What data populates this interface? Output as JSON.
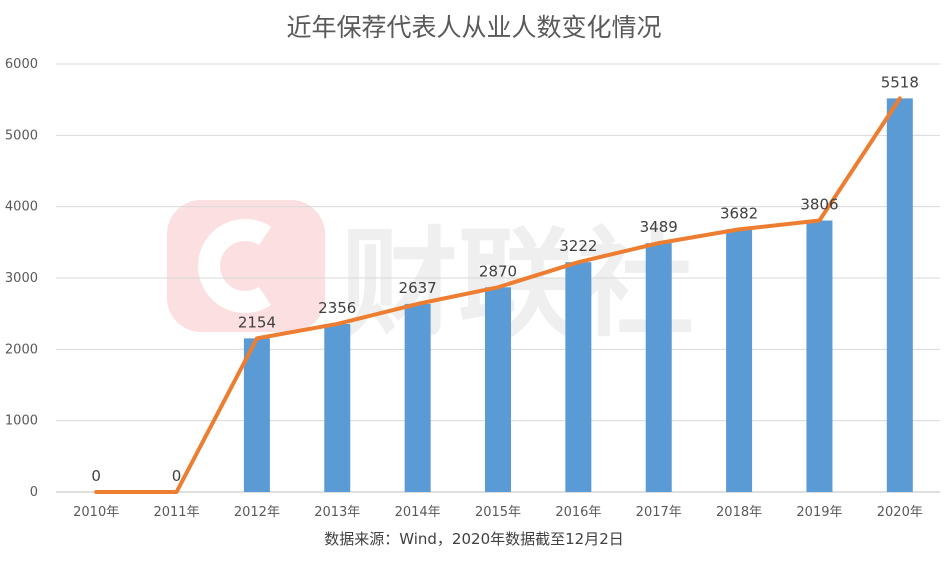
{
  "chart_data": {
    "type": "bar",
    "title": "近年保荐代表人从业人数变化情况",
    "categories": [
      "2010年",
      "2011年",
      "2012年",
      "2013年",
      "2014年",
      "2015年",
      "2016年",
      "2017年",
      "2018年",
      "2019年",
      "2020年"
    ],
    "series": [
      {
        "type": "bar",
        "values": [
          0,
          0,
          2154,
          2356,
          2637,
          2870,
          3222,
          3489,
          3682,
          3806,
          5518
        ],
        "color": "#5B9BD5"
      },
      {
        "type": "line",
        "values": [
          0,
          0,
          2154,
          2356,
          2637,
          2870,
          3222,
          3489,
          3682,
          3806,
          5518
        ],
        "color": "#ED7D31"
      }
    ],
    "data_labels": [
      "0",
      "0",
      "2154",
      "2356",
      "2637",
      "2870",
      "3222",
      "3489",
      "3682",
      "3806",
      "5518"
    ],
    "y_ticks": [
      "0",
      "1000",
      "2000",
      "3000",
      "4000",
      "5000",
      "6000"
    ],
    "ylim": [
      0,
      6000
    ],
    "grid": true,
    "xlabel": "",
    "ylabel": ""
  },
  "source": "数据来源：Wind，2020年数据截至12月2日",
  "watermark": "财联社"
}
